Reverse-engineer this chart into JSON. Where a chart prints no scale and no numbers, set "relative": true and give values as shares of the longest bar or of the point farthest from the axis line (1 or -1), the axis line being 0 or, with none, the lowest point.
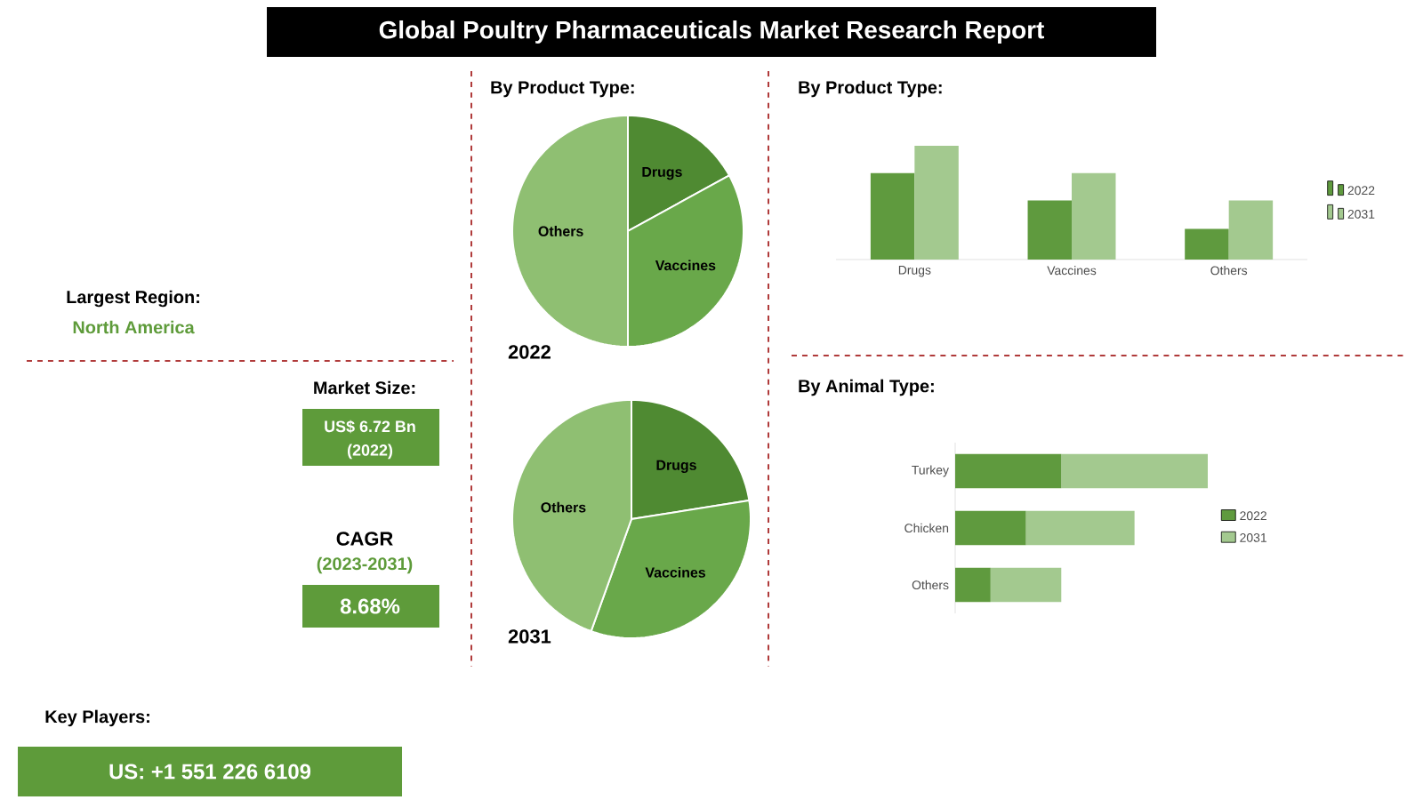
{
  "chart_data": [
    {
      "type": "other",
      "title": "Global Poultry Pharmaceuticals Market Research Report",
      "annotations": [
        "Largest Region:",
        "North America",
        "Market Size:",
        "US$ 6.72 Bn",
        "(2022)",
        "CAGR",
        "(2023-2031)",
        "8.68%",
        "Key Players:",
        "US: +1 551 226 6109"
      ]
    },
    {
      "type": "pie",
      "title": "By Product Type:",
      "annotations": [
        "2022"
      ],
      "categories": [
        "Drugs",
        "Vaccines",
        "Others"
      ],
      "values": [
        17,
        33,
        50
      ],
      "colors": [
        "#4f8a32",
        "#69a84a",
        "#8fbf72"
      ]
    },
    {
      "type": "bar",
      "title": "By Product Type:",
      "categories": [
        "Drugs",
        "Vaccines",
        "Others"
      ],
      "relative": true,
      "legend": "right",
      "series": [
        {
          "name": "2022",
          "color": "#5f9a3e",
          "values": [
            0.76,
            0.52,
            0.27
          ]
        },
        {
          "name": "2031",
          "color": "#a3c98f",
          "values": [
            1,
            0.76,
            0.52
          ]
        }
      ]
    },
    {
      "type": "pie",
      "annotations": [
        "2031"
      ],
      "categories": [
        "Drugs",
        "Vaccines",
        "Others"
      ],
      "values": [
        22.5,
        33,
        44.5
      ],
      "colors": [
        "#4f8a32",
        "#69a84a",
        "#8fbf72"
      ]
    },
    {
      "type": "bar",
      "title": "By Animal Type:",
      "orientation": "horizontal",
      "stacked": true,
      "relative": true,
      "legend": "right",
      "categories": [
        "Turkey",
        "Chicken",
        "Others"
      ],
      "series": [
        {
          "name": "2022",
          "color": "#5f9a3e",
          "values": [
            0.42,
            0.28,
            0.14
          ]
        },
        {
          "name": "2031",
          "color": "#a3c98f",
          "values": [
            0.58,
            0.43,
            0.28
          ]
        }
      ]
    }
  ]
}
